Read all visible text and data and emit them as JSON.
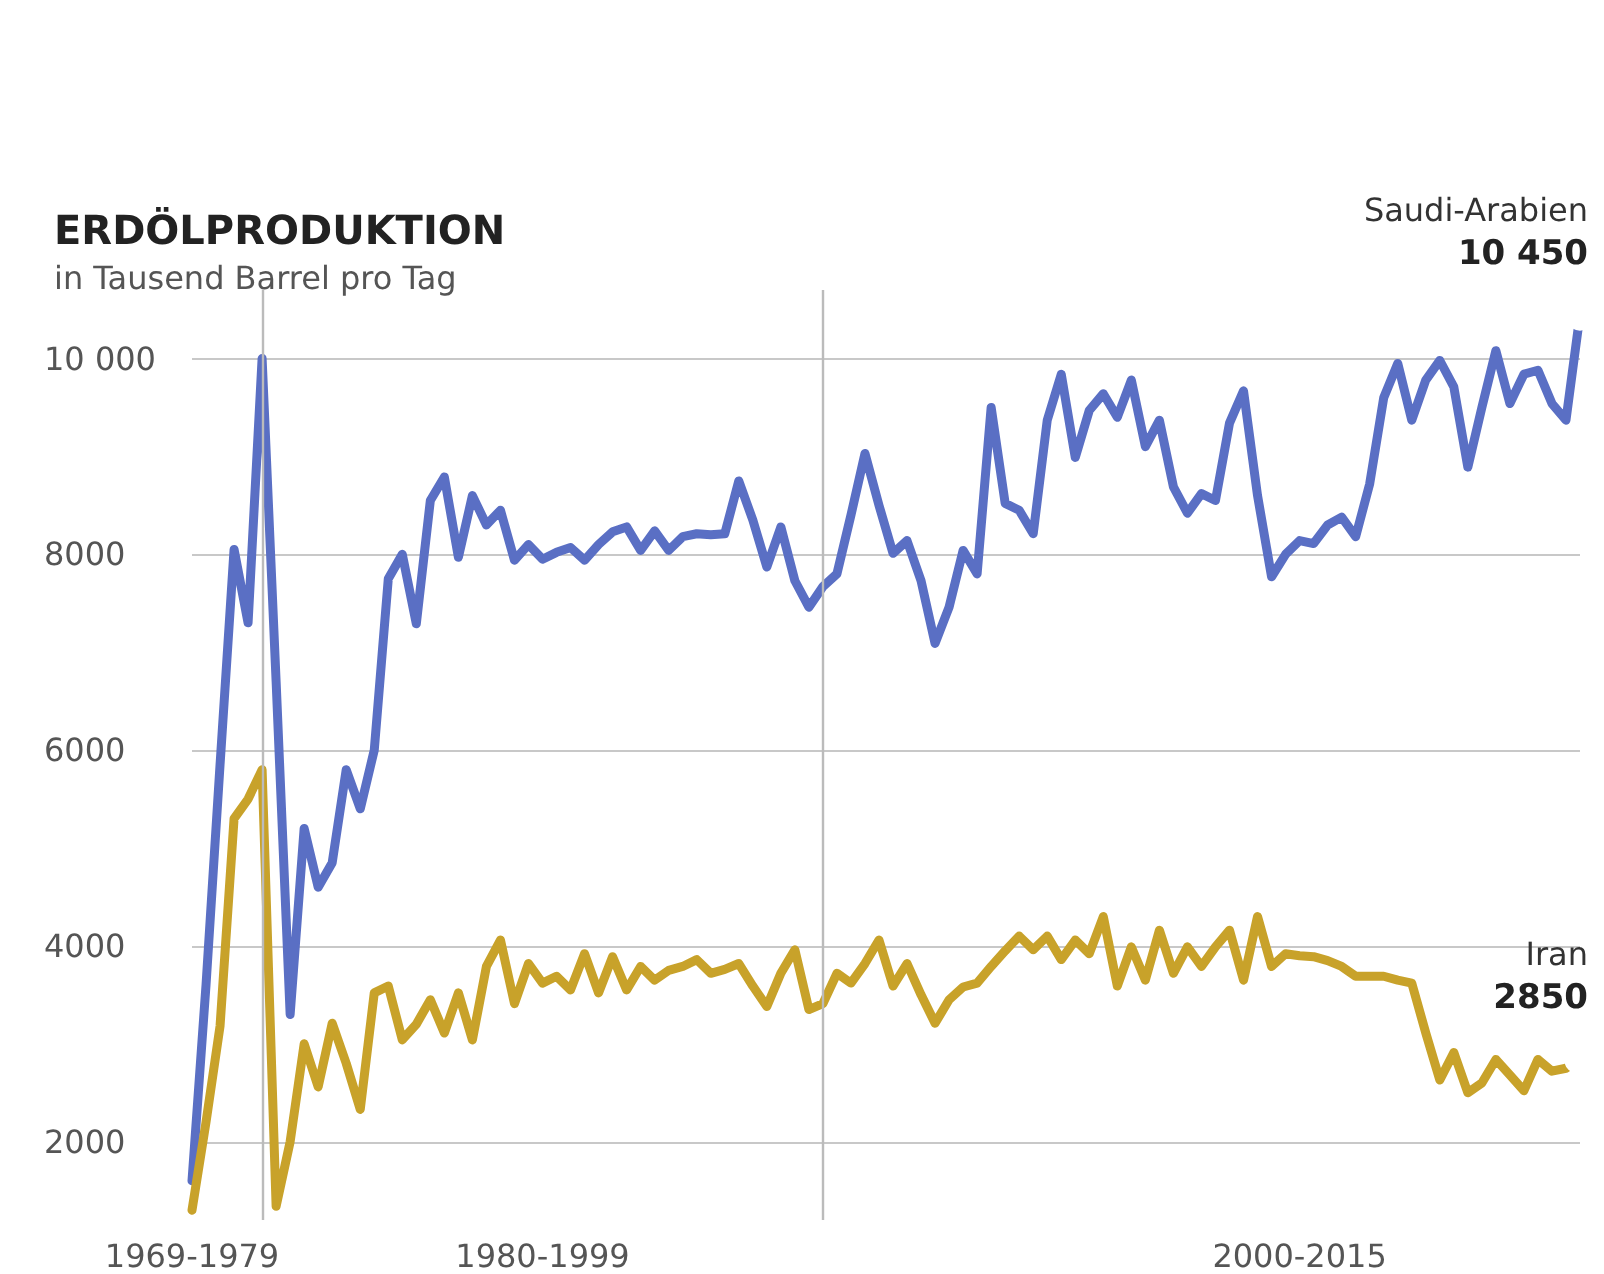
{
  "chart_data": {
    "type": "line",
    "title": "ERDÖLPRODUKTION",
    "subtitle": "in Tausend Barrel pro Tag",
    "categories": [
      "1969-1979",
      null,
      null,
      null,
      null,
      null,
      null,
      null,
      null,
      null,
      null,
      null,
      null,
      null,
      null,
      null,
      null,
      null,
      null,
      null,
      null,
      null,
      null,
      null,
      null,
      "1980-1999",
      null,
      null,
      null,
      null,
      null,
      null,
      null,
      null,
      null,
      null,
      null,
      null,
      null,
      null,
      null,
      null,
      null,
      null,
      null,
      null,
      null,
      null,
      null,
      null,
      null,
      null,
      null,
      null,
      null,
      null,
      null,
      null,
      null,
      null,
      null,
      null,
      null,
      null,
      null,
      null,
      null,
      null,
      null,
      null,
      null,
      null,
      null,
      null,
      null,
      null,
      null,
      null,
      null,
      "2000-2015",
      null,
      null,
      null,
      null,
      null,
      null,
      null,
      null,
      null,
      null,
      null,
      null,
      null,
      null,
      null,
      null,
      null,
      null,
      null,
      null
    ],
    "series": [
      {
        "name": "Saudi-Arabien",
        "color": "#5a6fc4",
        "values": [
          1600,
          3600,
          5850,
          8050,
          7300,
          10000,
          6700,
          3300,
          5200,
          4600,
          4850,
          5800,
          5400,
          6000,
          7750,
          8000,
          7290,
          8550,
          8790,
          7970,
          8600,
          8300,
          8450,
          7940,
          8100,
          7950,
          8020,
          8070,
          7940,
          8100,
          8230,
          8280,
          8040,
          8240,
          8040,
          8180,
          8210,
          8200,
          8210,
          8750,
          8350,
          7870,
          8280,
          7730,
          7460,
          7670,
          7800,
          8400,
          9030,
          8500,
          8010,
          8140,
          7730,
          7090,
          7460,
          8040,
          7800,
          9500,
          8520,
          8450,
          8210,
          9370,
          9840,
          8990,
          9470,
          9640,
          9400,
          9780,
          9100,
          9370,
          8690,
          8420,
          8620,
          8550,
          9340,
          9670,
          8600,
          7770,
          8000,
          8140,
          8110,
          8300,
          8380,
          8180,
          8720,
          9600,
          9950,
          9370,
          9780,
          9980,
          9710,
          8890,
          9500,
          10080,
          9540,
          9840,
          9880,
          9540,
          9370,
          10450
        ],
        "value_labels": [
          null,
          null,
          null,
          null,
          null,
          null,
          null,
          null,
          null,
          null,
          null,
          null,
          null,
          null,
          null,
          null,
          null,
          null,
          null,
          null,
          null,
          null,
          null,
          null,
          null,
          null,
          null,
          null,
          null,
          null,
          null,
          null,
          null,
          null,
          null,
          null,
          null,
          null,
          null,
          null,
          null,
          null,
          null,
          null,
          null,
          null,
          null,
          null,
          null,
          null,
          null,
          null,
          null,
          null,
          null,
          null,
          null,
          null,
          null,
          null,
          null,
          null,
          null,
          null,
          null,
          null,
          null,
          null,
          null,
          null,
          null,
          null,
          null,
          null,
          null,
          null,
          null,
          null,
          null,
          null,
          null,
          null,
          null,
          null,
          null,
          null,
          null,
          null,
          null,
          null,
          null,
          null,
          null,
          null,
          null,
          null,
          null,
          null,
          null,
          "10 450"
        ]
      },
      {
        "name": "Iran",
        "color": "#c8a22a",
        "values": [
          1300,
          2200,
          3180,
          5300,
          5500,
          5800,
          1340,
          2000,
          3000,
          2560,
          3210,
          2800,
          2330,
          3520,
          3590,
          3040,
          3200,
          3450,
          3110,
          3520,
          3040,
          3790,
          4060,
          3410,
          3820,
          3620,
          3690,
          3550,
          3920,
          3520,
          3890,
          3550,
          3790,
          3650,
          3750,
          3790,
          3860,
          3720,
          3760,
          3820,
          3590,
          3380,
          3720,
          3960,
          3350,
          3410,
          3720,
          3620,
          3820,
          4060,
          3590,
          3820,
          3500,
          3210,
          3450,
          3580,
          3620,
          3790,
          3950,
          4100,
          3960,
          4100,
          3860,
          4060,
          3920,
          4300,
          3590,
          3990,
          3650,
          4160,
          3720,
          3990,
          3790,
          3990,
          4160,
          3650,
          4300,
          3790,
          3920,
          3900,
          3890,
          3850,
          3790,
          3690,
          3690,
          3690,
          3650,
          3620,
          3110,
          2630,
          2910,
          2500,
          2600,
          2840,
          2680,
          2520,
          2840,
          2720,
          2750,
          2850
        ],
        "value_labels": [
          null,
          null,
          null,
          null,
          null,
          null,
          null,
          null,
          null,
          null,
          null,
          null,
          null,
          null,
          null,
          null,
          null,
          null,
          null,
          null,
          null,
          null,
          null,
          null,
          null,
          null,
          null,
          null,
          null,
          null,
          null,
          null,
          null,
          null,
          null,
          null,
          null,
          null,
          null,
          null,
          null,
          null,
          null,
          null,
          null,
          null,
          null,
          null,
          null,
          null,
          null,
          null,
          null,
          null,
          null,
          null,
          null,
          null,
          null,
          null,
          null,
          null,
          null,
          null,
          null,
          null,
          null,
          null,
          null,
          null,
          null,
          null,
          null,
          null,
          null,
          null,
          null,
          null,
          null,
          null,
          null,
          null,
          null,
          null,
          null,
          null,
          null,
          null,
          null,
          null,
          null,
          null,
          null,
          null,
          null,
          null,
          null,
          null,
          null,
          "2850"
        ]
      }
    ],
    "ylim": [
      1200,
      10700
    ],
    "yticks": [
      2000,
      4000,
      6000,
      8000,
      {
        "value": 10000,
        "label": "10 000"
      }
    ],
    "grid": "y",
    "legend": false,
    "marker": "none",
    "line_style": "solid"
  }
}
